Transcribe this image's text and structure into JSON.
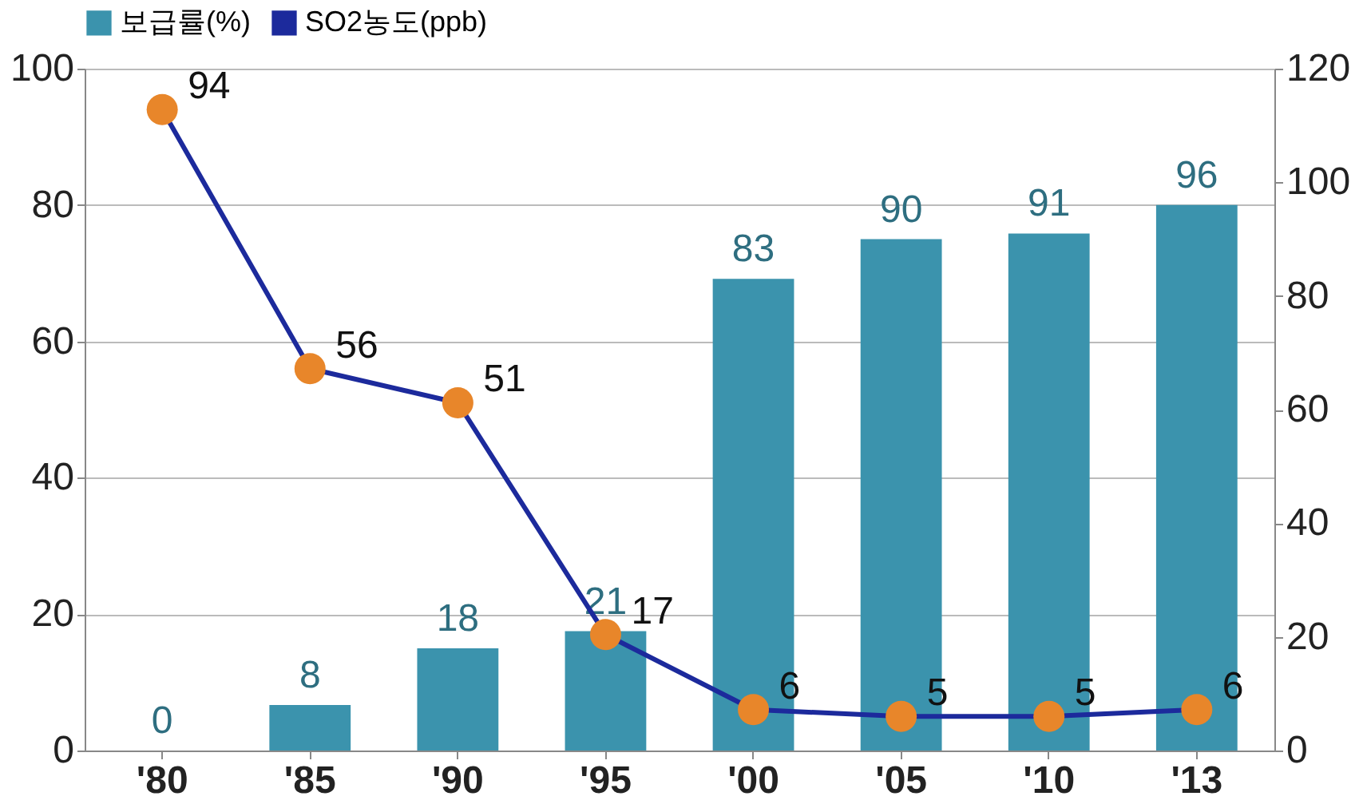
{
  "chart_data": {
    "type": "bar",
    "categories": [
      "'80",
      "'85",
      "'90",
      "'95",
      "'00",
      "'05",
      "'10",
      "'13"
    ],
    "series": [
      {
        "name": "보급률(%)",
        "axis": "y2",
        "color": "#3b93ad",
        "values": [
          0,
          8,
          18,
          21,
          83,
          90,
          91,
          96
        ]
      },
      {
        "name": "SO2농도(ppb)",
        "type": "line",
        "axis": "y",
        "color": "#1c2a9c",
        "marker": "circle",
        "values": [
          94,
          56,
          51,
          17,
          6,
          5,
          5,
          6
        ]
      }
    ],
    "ylim": [
      0,
      100
    ],
    "yticks": [
      0,
      20,
      40,
      60,
      80,
      100
    ],
    "y2lim": [
      0,
      120
    ],
    "y2ticks": [
      0,
      20,
      40,
      60,
      80,
      100,
      120
    ],
    "grid": "y",
    "legend": "top",
    "data_labels": true
  }
}
